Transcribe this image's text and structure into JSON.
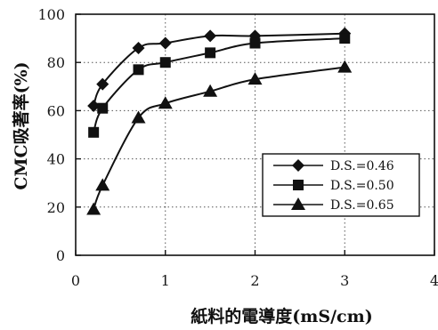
{
  "chart_data": {
    "type": "line",
    "title": "",
    "xlabel": "紙料的電導度(mS/cm)",
    "ylabel": "CMC吸著率(%)",
    "xlim": [
      0,
      4
    ],
    "ylim": [
      0,
      100
    ],
    "xticks": [
      0,
      1,
      2,
      3,
      4
    ],
    "yticks": [
      0,
      20,
      40,
      60,
      80,
      100
    ],
    "grid": "dotted horizontal and vertical",
    "legend_position": "bottom-right",
    "series": [
      {
        "name": "D.S.=0.46",
        "marker": "diamond",
        "x": [
          0.2,
          0.3,
          0.7,
          1.0,
          1.5,
          2.0,
          3.0
        ],
        "y": [
          62,
          71,
          86,
          88,
          91,
          91,
          92
        ]
      },
      {
        "name": "D.S.=0.50",
        "marker": "square",
        "x": [
          0.2,
          0.3,
          0.7,
          1.0,
          1.5,
          2.0,
          3.0
        ],
        "y": [
          51,
          61,
          77,
          80,
          84,
          88,
          90
        ]
      },
      {
        "name": "D.S.=0.65",
        "marker": "triangle",
        "x": [
          0.2,
          0.3,
          0.7,
          1.0,
          1.5,
          2.0,
          3.0
        ],
        "y": [
          19,
          29,
          57,
          63,
          68,
          73,
          78
        ]
      }
    ]
  }
}
